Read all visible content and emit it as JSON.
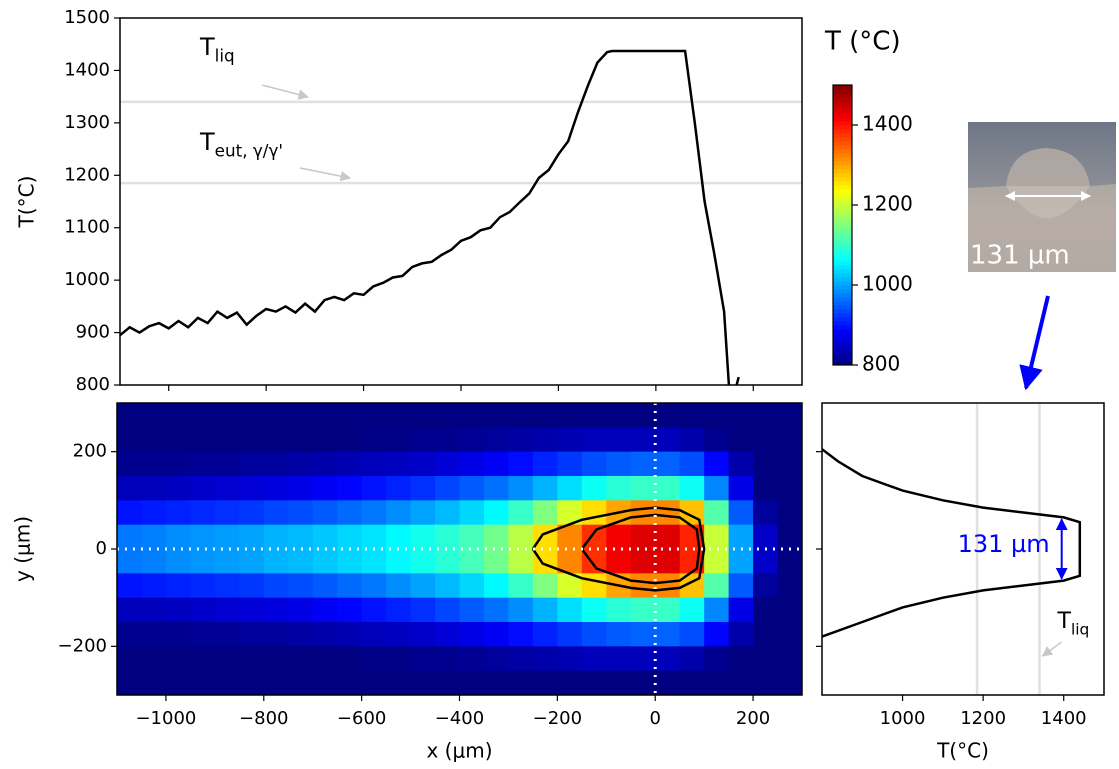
{
  "chart_data": [
    {
      "type": "line",
      "ylabel": "T(°C)",
      "xlim": [
        -1100,
        300
      ],
      "xticks": [
        -1000,
        -800,
        -600,
        -400,
        -200,
        0,
        200
      ],
      "xtick_labels": false,
      "ylim": [
        800,
        1500
      ],
      "yticks": [
        800,
        900,
        1000,
        1100,
        1200,
        1300,
        1400,
        1500
      ],
      "hlines": [
        {
          "value": 1340,
          "label": {
            "main": "T",
            "sub": "liq"
          }
        },
        {
          "value": 1185,
          "label": {
            "main": "T",
            "sub": "eut, γ/γ'"
          }
        }
      ],
      "color": "#000000",
      "x": [
        -1100,
        -1080,
        -1060,
        -1040,
        -1020,
        -1000,
        -980,
        -960,
        -940,
        -920,
        -900,
        -880,
        -860,
        -840,
        -820,
        -800,
        -780,
        -760,
        -740,
        -720,
        -700,
        -680,
        -660,
        -640,
        -620,
        -600,
        -580,
        -560,
        -540,
        -520,
        -500,
        -480,
        -460,
        -440,
        -420,
        -400,
        -380,
        -360,
        -340,
        -320,
        -300,
        -280,
        -260,
        -240,
        -220,
        -200,
        -180,
        -160,
        -140,
        -120,
        -100,
        -90,
        -80,
        60,
        80,
        100,
        120,
        140,
        150,
        160,
        170
      ],
      "values": [
        895,
        910,
        900,
        912,
        918,
        908,
        922,
        910,
        928,
        918,
        940,
        928,
        938,
        915,
        932,
        945,
        940,
        950,
        938,
        955,
        940,
        962,
        968,
        962,
        975,
        972,
        988,
        995,
        1005,
        1008,
        1025,
        1032,
        1035,
        1048,
        1058,
        1075,
        1082,
        1095,
        1100,
        1120,
        1130,
        1148,
        1165,
        1195,
        1210,
        1240,
        1265,
        1320,
        1370,
        1415,
        1435,
        1437,
        1437,
        1437,
        1300,
        1150,
        1050,
        940,
        800,
        780,
        815
      ]
    },
    {
      "type": "heatmap",
      "xlabel": "x (μm)",
      "ylabel": "y (μm)",
      "xlim": [
        -1100,
        300
      ],
      "xticks": [
        {
          "value": -1000,
          "label": "−1000"
        },
        {
          "value": -800,
          "label": "−800"
        },
        {
          "value": -600,
          "label": "−600"
        },
        {
          "value": -400,
          "label": "−400"
        },
        {
          "value": -200,
          "label": "−200"
        },
        0,
        200
      ],
      "ylim": [
        -300,
        300
      ],
      "yticks": [
        {
          "value": -200,
          "label": "−200"
        },
        0,
        200
      ],
      "crosshair": {
        "x": 0,
        "y": 0
      },
      "xbins": [
        -1100,
        -1050,
        -1000,
        -950,
        -900,
        -850,
        -800,
        -750,
        -700,
        -650,
        -600,
        -550,
        -500,
        -450,
        -400,
        -350,
        -300,
        -250,
        -200,
        -150,
        -100,
        -50,
        0,
        50,
        100,
        150,
        200,
        250,
        300
      ],
      "ybins": [
        300,
        250,
        200,
        150,
        100,
        50,
        0,
        -50,
        -100,
        -150,
        -200,
        -250,
        -300
      ],
      "z": [
        [
          800,
          800,
          800,
          800,
          800,
          800,
          800,
          800,
          800,
          800,
          800,
          800,
          800,
          800,
          800,
          800,
          800,
          800,
          800,
          800,
          800,
          800,
          800,
          800,
          800,
          800,
          800,
          800
        ],
        [
          800,
          800,
          800,
          800,
          800,
          800,
          800,
          800,
          800,
          800,
          805,
          805,
          810,
          810,
          815,
          820,
          825,
          830,
          835,
          840,
          840,
          840,
          840,
          830,
          810,
          800,
          800,
          800
        ],
        [
          810,
          810,
          810,
          815,
          815,
          820,
          820,
          825,
          830,
          835,
          840,
          845,
          850,
          860,
          870,
          880,
          895,
          910,
          925,
          940,
          950,
          955,
          955,
          940,
          890,
          830,
          800,
          800
        ],
        [
          840,
          840,
          845,
          850,
          855,
          860,
          865,
          870,
          880,
          890,
          900,
          910,
          920,
          935,
          950,
          965,
          985,
          1010,
          1040,
          1070,
          1090,
          1100,
          1100,
          1070,
          980,
          870,
          800,
          800
        ],
        [
          900,
          905,
          910,
          915,
          920,
          925,
          935,
          940,
          950,
          960,
          970,
          985,
          1000,
          1015,
          1035,
          1060,
          1100,
          1150,
          1210,
          1260,
          1300,
          1320,
          1320,
          1280,
          1120,
          950,
          820,
          800
        ],
        [
          970,
          975,
          985,
          990,
          995,
          1000,
          1010,
          1015,
          1025,
          1035,
          1045,
          1060,
          1075,
          1090,
          1110,
          1140,
          1190,
          1260,
          1320,
          1380,
          1420,
          1435,
          1435,
          1390,
          1200,
          1000,
          850,
          800
        ],
        [
          970,
          975,
          985,
          990,
          995,
          1000,
          1010,
          1015,
          1025,
          1035,
          1045,
          1060,
          1075,
          1090,
          1110,
          1140,
          1190,
          1260,
          1320,
          1380,
          1420,
          1435,
          1435,
          1390,
          1200,
          1000,
          850,
          800
        ],
        [
          900,
          905,
          910,
          915,
          920,
          925,
          935,
          940,
          950,
          960,
          970,
          985,
          1000,
          1015,
          1035,
          1060,
          1100,
          1150,
          1210,
          1260,
          1300,
          1320,
          1320,
          1280,
          1120,
          950,
          820,
          800
        ],
        [
          840,
          840,
          845,
          850,
          855,
          860,
          865,
          870,
          880,
          890,
          900,
          910,
          920,
          935,
          950,
          965,
          985,
          1010,
          1040,
          1070,
          1090,
          1100,
          1100,
          1070,
          980,
          870,
          800,
          800
        ],
        [
          810,
          810,
          810,
          815,
          815,
          820,
          820,
          825,
          830,
          835,
          840,
          845,
          850,
          860,
          870,
          880,
          895,
          910,
          925,
          940,
          950,
          955,
          955,
          940,
          890,
          830,
          800,
          800
        ],
        [
          800,
          800,
          800,
          800,
          800,
          800,
          800,
          800,
          800,
          800,
          805,
          805,
          810,
          810,
          815,
          820,
          825,
          830,
          835,
          840,
          840,
          840,
          840,
          830,
          810,
          800,
          800,
          800
        ],
        [
          800,
          800,
          800,
          800,
          800,
          800,
          800,
          800,
          800,
          800,
          800,
          800,
          800,
          800,
          800,
          800,
          800,
          800,
          800,
          800,
          800,
          800,
          800,
          800,
          800,
          800,
          800,
          800
        ]
      ],
      "contours": [
        {
          "x": [
            -250,
            -240,
            -230,
            -150,
            -50,
            0,
            50,
            90,
            100,
            90,
            50,
            0,
            -50,
            -150,
            -230,
            -240,
            -250
          ],
          "y": [
            0,
            15,
            30,
            60,
            80,
            85,
            80,
            60,
            0,
            -60,
            -80,
            -85,
            -80,
            -60,
            -30,
            -15,
            0
          ]
        },
        {
          "x": [
            -150,
            -120,
            -50,
            0,
            50,
            85,
            90,
            85,
            50,
            0,
            -50,
            -120,
            -150
          ],
          "y": [
            0,
            40,
            65,
            70,
            65,
            40,
            0,
            -40,
            -65,
            -70,
            -65,
            -40,
            0
          ]
        }
      ],
      "contour_color": "#000000",
      "colorbar": {
        "label": "T (°C)",
        "lim": [
          800,
          1500
        ],
        "ticks": [
          800,
          1000,
          1200,
          1400
        ],
        "colormap": "jet"
      }
    },
    {
      "type": "profile",
      "xlabel": "T(°C)",
      "xlim": [
        800,
        1500
      ],
      "xticks": [
        1000,
        1200,
        1400
      ],
      "ylim": [
        -300,
        300
      ],
      "yticks": [
        -200,
        0,
        200
      ],
      "ytick_labels": false,
      "vlines": [
        {
          "value": 1185
        },
        {
          "value": 1340,
          "label": {
            "main": "T",
            "sub": "liq"
          }
        }
      ],
      "color": "#000000",
      "x": [
        800,
        840,
        900,
        1000,
        1100,
        1200,
        1300,
        1400,
        1440,
        1440,
        1400,
        1300,
        1200,
        1100,
        1000,
        900,
        800
      ],
      "y": [
        205,
        180,
        150,
        120,
        100,
        85,
        75,
        65,
        55,
        -55,
        -65,
        -75,
        -85,
        -100,
        -120,
        -150,
        -180
      ],
      "width_annotation": {
        "text": "131 µm",
        "x": 1395,
        "y": [
          65,
          -65
        ],
        "color": "#0000ff"
      }
    },
    {
      "type": "inset",
      "label": "131 µm"
    }
  ]
}
